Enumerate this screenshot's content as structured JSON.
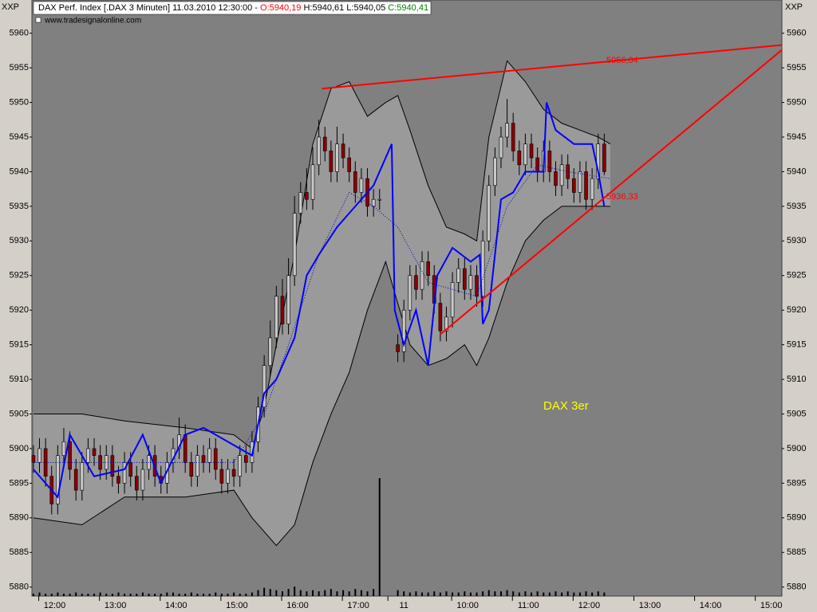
{
  "chart_data": {
    "type": "candlestick",
    "header": {
      "instrument": "DAX Perf. Index [.DAX  3 Minuten] 11.03.2010 12:30:00 -",
      "open": "O:5940,19",
      "high_low": "H:5940,61 L:5940,05",
      "close": "C:5940,41",
      "source": "www.tradesignalonline.com"
    },
    "y_axis_title": "XXP",
    "annotation": "DAX 3er",
    "annotation_color": "#ffff00",
    "up_color": "#c8c8c8",
    "down_color": "#8b0000",
    "x": [
      0,
      2,
      4,
      6,
      8,
      10,
      12,
      14,
      16,
      18,
      20,
      22,
      24,
      26,
      28,
      30,
      32,
      34,
      36,
      38,
      40,
      42,
      44,
      46,
      48,
      50,
      52,
      54,
      56,
      58,
      60,
      62,
      64,
      66,
      68,
      70,
      72,
      74,
      76,
      78,
      80,
      82,
      84,
      86,
      88,
      90,
      92,
      94,
      96,
      98,
      100,
      102,
      104,
      106,
      108,
      110,
      112,
      114,
      120,
      122,
      124,
      126,
      128,
      130,
      132,
      134,
      136,
      138,
      140,
      142,
      144,
      146,
      148,
      150,
      152,
      154,
      156,
      158,
      160,
      162,
      164,
      166,
      168,
      170,
      172,
      174,
      176,
      178,
      180,
      182,
      184,
      186,
      188
    ],
    "open": [
      5899,
      5898,
      5900,
      5896,
      5892,
      5899,
      5901,
      5897,
      5894,
      5898,
      5900,
      5899,
      5897,
      5899,
      5896,
      5895,
      5898,
      5896,
      5894,
      5897,
      5899,
      5896,
      5895,
      5898,
      5900,
      5902,
      5898,
      5896,
      5899,
      5898,
      5900,
      5897,
      5895,
      5897,
      5896,
      5899,
      5898,
      5901,
      5906,
      5912,
      5916,
      5922,
      5918,
      5925,
      5934,
      5937,
      5936,
      5941,
      5945,
      5943,
      5940,
      5944,
      5942,
      5940,
      5937,
      5939,
      5935,
      5936,
      5915,
      5914,
      5920,
      5925,
      5923,
      5927,
      5925,
      5921,
      5917,
      5919,
      5924,
      5926,
      5923,
      5925,
      5922,
      5930,
      5938,
      5942,
      5945,
      5947,
      5943,
      5941,
      5944,
      5942,
      5940,
      5943,
      5940,
      5938,
      5941,
      5939,
      5937,
      5940,
      5936,
      5939,
      5944
    ],
    "high": [
      5900.5,
      5901.5,
      5901.5,
      5897.5,
      5900.5,
      5903,
      5902.5,
      5898.5,
      5899.5,
      5901.5,
      5901.5,
      5900.5,
      5900.5,
      5900.5,
      5897.5,
      5899.5,
      5899.5,
      5897.5,
      5898.5,
      5900.5,
      5900.5,
      5897.5,
      5899.5,
      5901.5,
      5904.5,
      5903.5,
      5899.5,
      5900.5,
      5900.5,
      5901.5,
      5901.5,
      5898.5,
      5898.5,
      5898.5,
      5900.5,
      5900.5,
      5902.5,
      5907.5,
      5913.5,
      5918.5,
      5923.5,
      5924.5,
      5927.5,
      5936.5,
      5938.5,
      5940.5,
      5943.5,
      5947.5,
      5946.5,
      5944.5,
      5946.5,
      5945.5,
      5943.5,
      5941.5,
      5940.5,
      5940.5,
      5937.5,
      5937.5,
      5916.5,
      5921.5,
      5926.5,
      5926.5,
      5928.5,
      5928.5,
      5926.5,
      5922.5,
      5920.5,
      5925.5,
      5927.5,
      5927.5,
      5926.5,
      5926.5,
      5931.5,
      5939.5,
      5943.5,
      5946.5,
      5950.5,
      5948.5,
      5944.5,
      5945.5,
      5945.5,
      5943.5,
      5944.5,
      5944.5,
      5941.5,
      5942.5,
      5942.5,
      5940.5,
      5941.5,
      5941.5,
      5940.5,
      5945.5,
      5945.5
    ],
    "low": [
      5896.5,
      5896.5,
      5894.5,
      5890.5,
      5890.5,
      5897.5,
      5895.5,
      5892.5,
      5892.5,
      5896.5,
      5897.5,
      5895.5,
      5895.5,
      5894.5,
      5893.5,
      5893.5,
      5894.5,
      5892.5,
      5892.5,
      5895.5,
      5894.5,
      5893.5,
      5893.5,
      5896.5,
      5898.5,
      5896.5,
      5894.5,
      5894.5,
      5896.5,
      5896.5,
      5895.5,
      5893.5,
      5893.5,
      5894.5,
      5894.5,
      5896.5,
      5896.5,
      5899.5,
      5904.5,
      5910.5,
      5914.5,
      5916.5,
      5916.5,
      5923.5,
      5932.5,
      5934.5,
      5934.5,
      5939.5,
      5941.5,
      5938.5,
      5938.5,
      5940.5,
      5938.5,
      5935.5,
      5935.5,
      5933.5,
      5933.5,
      5934.5,
      5912.5,
      5912.5,
      5918.5,
      5921.5,
      5921.5,
      5923.5,
      5919.5,
      5915.5,
      5915.5,
      5917.5,
      5922.5,
      5921.5,
      5921.5,
      5920.5,
      5920.5,
      5928.5,
      5936.5,
      5940.5,
      5943.5,
      5941.5,
      5939.5,
      5939.5,
      5940.5,
      5938.5,
      5938.5,
      5938.5,
      5936.5,
      5936.5,
      5937.5,
      5935.5,
      5935.5,
      5934.5,
      5934.5,
      5937.5,
      5939.5
    ],
    "close": [
      5898,
      5900,
      5896,
      5892,
      5899,
      5901,
      5897,
      5894,
      5898,
      5900,
      5899,
      5897,
      5899,
      5896,
      5895,
      5898,
      5896,
      5894,
      5897,
      5899,
      5896,
      5895,
      5898,
      5900,
      5902,
      5898,
      5896,
      5899,
      5898,
      5900,
      5897,
      5895,
      5897,
      5896,
      5899,
      5898,
      5901,
      5906,
      5912,
      5916,
      5922,
      5918,
      5925,
      5934,
      5937,
      5936,
      5941,
      5945,
      5943,
      5940,
      5944,
      5942,
      5940,
      5937,
      5939,
      5935,
      5936,
      5936,
      5914,
      5920,
      5925,
      5923,
      5927,
      5925,
      5921,
      5917,
      5919,
      5924,
      5926,
      5923,
      5925,
      5922,
      5930,
      5938,
      5942,
      5945,
      5947,
      5943,
      5941,
      5944,
      5942,
      5940,
      5943,
      5940,
      5938,
      5941,
      5939,
      5937,
      5940,
      5936,
      5939,
      5944,
      5940
    ],
    "volume": [
      2,
      3,
      2,
      2,
      3,
      2,
      2,
      3,
      2,
      2,
      2,
      3,
      2,
      2,
      3,
      2,
      2,
      2,
      3,
      2,
      2,
      2,
      3,
      3,
      2,
      2,
      3,
      2,
      2,
      2,
      3,
      2,
      2,
      3,
      2,
      2,
      3,
      5,
      7,
      6,
      5,
      4,
      6,
      8,
      5,
      4,
      5,
      4,
      5,
      6,
      4,
      5,
      4,
      6,
      5,
      4,
      6,
      100,
      5,
      4,
      3,
      4,
      3,
      3,
      4,
      3,
      4,
      3,
      3,
      4,
      3,
      3,
      4,
      5,
      4,
      4,
      5,
      4,
      3,
      4,
      3,
      4,
      3,
      3,
      4,
      3,
      4,
      3,
      3,
      4,
      3,
      4,
      3
    ],
    "volume_color": "#000000",
    "bands": {
      "x": [
        0,
        16,
        30,
        50,
        66,
        72,
        76,
        80,
        86,
        92,
        98,
        104,
        110,
        116,
        120,
        124,
        130,
        136,
        142,
        146,
        150,
        156,
        162,
        168,
        174,
        180,
        186,
        190
      ],
      "upper": [
        5905,
        5905,
        5904,
        5903,
        5902,
        5900,
        5906,
        5915,
        5928,
        5944,
        5952,
        5953,
        5948,
        5950,
        5951,
        5946,
        5938,
        5932,
        5931,
        5930,
        5945,
        5956,
        5953,
        5949,
        5947,
        5946,
        5945,
        5944
      ],
      "lower": [
        5890,
        5889,
        5893,
        5893,
        5894,
        5890,
        5888,
        5886,
        5889,
        5898,
        5905,
        5911,
        5920,
        5927,
        5921,
        5915,
        5912,
        5913,
        5915,
        5912,
        5916,
        5924,
        5930,
        5933,
        5935,
        5935,
        5935,
        5935
      ],
      "fill": "#9a9a9a",
      "stroke": "#000000"
    },
    "lines": [
      {
        "color": "#0000ff",
        "dotted": false,
        "x": [
          0,
          8,
          12,
          20,
          30,
          36,
          42,
          50,
          56,
          64,
          72,
          76,
          80,
          86,
          90,
          94,
          100,
          106,
          112,
          118,
          119,
          122,
          126,
          130,
          133,
          138,
          144,
          147,
          148,
          150,
          154,
          158,
          162,
          168,
          169,
          172,
          178,
          184,
          186,
          188
        ],
        "values": [
          5897,
          5893,
          5902,
          5896,
          5897,
          5902,
          5895,
          5902,
          5903,
          5901,
          5899,
          5908,
          5910,
          5916,
          5925,
          5928,
          5932,
          5935,
          5938,
          5944,
          5920,
          5915,
          5920,
          5912,
          5925,
          5929,
          5927,
          5928,
          5918,
          5920,
          5936,
          5937,
          5940,
          5940,
          5950,
          5946,
          5944,
          5944,
          5940,
          5935
        ]
      },
      {
        "color": "#0000cc",
        "dotted": true,
        "x": [
          0,
          30,
          66,
          76,
          84,
          94,
          104,
          112,
          120,
          130,
          146,
          156,
          166,
          176,
          190
        ],
        "values": [
          5898,
          5898,
          5898,
          5905,
          5915,
          5928,
          5937,
          5935,
          5932,
          5924,
          5922,
          5935,
          5941,
          5940,
          5939
        ]
      }
    ],
    "trendlines": [
      {
        "color": "#ff0000",
        "x": [
          95,
          246.5
        ],
        "values": [
          5952,
          5958.3
        ],
        "label": {
          "value": 5956.04,
          "label": "5956,04"
        }
      },
      {
        "color": "#ff0000",
        "x": [
          134,
          246.5
        ],
        "values": [
          5916.5,
          5957.6
        ],
        "label": {
          "value": 5936.33,
          "label": "5936,33"
        }
      }
    ],
    "xlim": [
      -0.5,
      246.5
    ],
    "xticks": [
      {
        "value": 7,
        "label": "12:00"
      },
      {
        "value": 27,
        "label": "13:00"
      },
      {
        "value": 47,
        "label": "14:00"
      },
      {
        "value": 67,
        "label": "15:00"
      },
      {
        "value": 87,
        "label": "16:00"
      },
      {
        "value": 107,
        "label": "17:00"
      },
      {
        "value": 122,
        "label": "11"
      },
      {
        "value": 143,
        "label": "10:00"
      },
      {
        "value": 163,
        "label": "11:00"
      },
      {
        "value": 183,
        "label": "12:00"
      },
      {
        "value": 203,
        "label": "13:00"
      },
      {
        "value": 223,
        "label": "14:00"
      },
      {
        "value": 243,
        "label": "15:00"
      }
    ],
    "ylim": [
      5878.7,
      5964.8
    ],
    "yticks": [
      5880,
      5885,
      5890,
      5895,
      5900,
      5905,
      5910,
      5915,
      5920,
      5925,
      5930,
      5935,
      5940,
      5945,
      5950,
      5955,
      5960
    ]
  }
}
